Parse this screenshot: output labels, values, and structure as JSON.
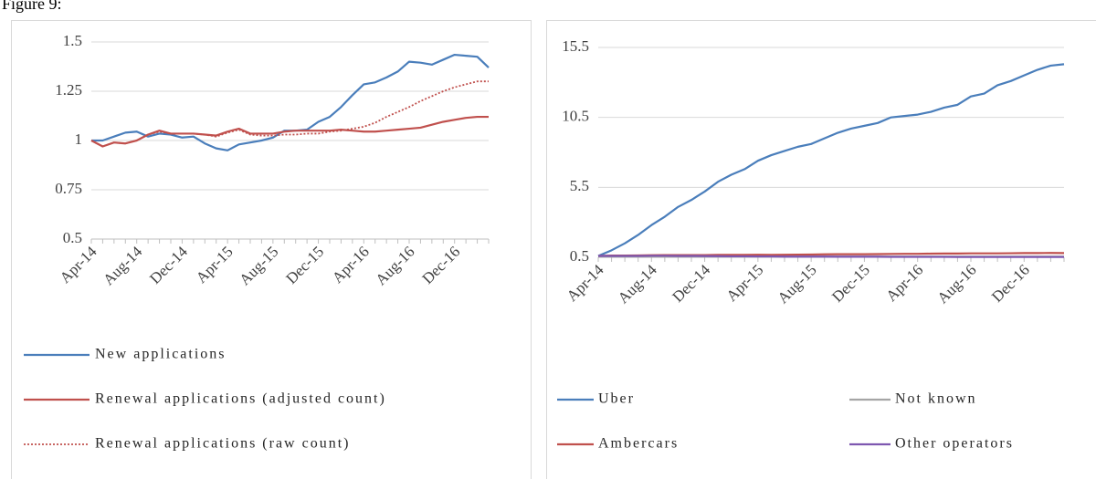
{
  "figure_label": "Figure 9:",
  "chart_data": [
    {
      "type": "line",
      "categories": [
        "Apr-14",
        null,
        null,
        null,
        "Aug-14",
        null,
        null,
        null,
        "Dec-14",
        null,
        null,
        null,
        "Apr-15",
        null,
        null,
        null,
        "Aug-15",
        null,
        null,
        null,
        "Dec-15",
        null,
        null,
        null,
        "Apr-16",
        null,
        null,
        null,
        "Aug-16",
        null,
        null,
        null,
        "Dec-16",
        null,
        null,
        null
      ],
      "ylim": [
        0.5,
        1.5
      ],
      "yticks": [
        0.5,
        0.75,
        1,
        1.25,
        1.5
      ],
      "grid": true,
      "legend": "bottom",
      "series": [
        {
          "name": "New applications",
          "color": "#4a7ebb",
          "values": [
            1.0,
            1.0,
            1.02,
            1.04,
            1.045,
            1.02,
            1.035,
            1.03,
            1.015,
            1.02,
            0.985,
            0.96,
            0.95,
            0.98,
            0.99,
            1.0,
            1.015,
            1.05,
            1.05,
            1.055,
            1.095,
            1.12,
            1.17,
            1.23,
            1.285,
            1.295,
            1.32,
            1.35,
            1.4,
            1.395,
            1.385,
            1.41,
            1.435,
            1.43,
            1.425,
            1.37
          ]
        },
        {
          "name": "Renewal applications (adjusted count)",
          "color": "#c0504d",
          "values": [
            1.0,
            0.97,
            0.99,
            0.985,
            1.0,
            1.03,
            1.05,
            1.035,
            1.035,
            1.035,
            1.03,
            1.025,
            1.045,
            1.06,
            1.035,
            1.035,
            1.035,
            1.045,
            1.05,
            1.05,
            1.05,
            1.05,
            1.055,
            1.05,
            1.045,
            1.045,
            1.05,
            1.055,
            1.06,
            1.065,
            1.08,
            1.095,
            1.105,
            1.115,
            1.12,
            1.12
          ]
        },
        {
          "name": "Renewal applications (raw count)",
          "color": "#c0504d",
          "dash": "dotted",
          "values": [
            1.0,
            0.97,
            0.99,
            0.985,
            1.0,
            1.03,
            1.045,
            1.035,
            1.035,
            1.035,
            1.03,
            1.02,
            1.04,
            1.055,
            1.03,
            1.025,
            1.025,
            1.03,
            1.03,
            1.035,
            1.035,
            1.045,
            1.05,
            1.06,
            1.07,
            1.09,
            1.12,
            1.145,
            1.17,
            1.2,
            1.225,
            1.25,
            1.27,
            1.285,
            1.3,
            1.3
          ]
        }
      ]
    },
    {
      "type": "line",
      "categories": [
        "Apr-14",
        null,
        null,
        null,
        "Aug-14",
        null,
        null,
        null,
        "Dec-14",
        null,
        null,
        null,
        "Apr-15",
        null,
        null,
        null,
        "Aug-15",
        null,
        null,
        null,
        "Dec-15",
        null,
        null,
        null,
        "Apr-16",
        null,
        null,
        null,
        "Aug-16",
        null,
        null,
        null,
        "Dec-16",
        null,
        null,
        null
      ],
      "ylim": [
        0.5,
        15.5
      ],
      "yticks": [
        0.5,
        5.5,
        10.5,
        15.5
      ],
      "grid": true,
      "legend": "bottom",
      "series": [
        {
          "name": "Uber",
          "color": "#4a7ebb",
          "values": [
            0.6,
            1.0,
            1.5,
            2.1,
            2.8,
            3.4,
            4.1,
            4.6,
            5.2,
            5.9,
            6.4,
            6.8,
            7.4,
            7.8,
            8.1,
            8.4,
            8.6,
            9.0,
            9.4,
            9.7,
            9.9,
            10.1,
            10.5,
            10.6,
            10.7,
            10.9,
            11.2,
            11.4,
            12.0,
            12.2,
            12.8,
            13.1,
            13.5,
            13.9,
            14.2,
            14.3
          ]
        },
        {
          "name": "Not known",
          "color": "#a5a5a5",
          "values": [
            0.55,
            0.55,
            0.55,
            0.55,
            0.55,
            0.55,
            0.55,
            0.55,
            0.55,
            0.55,
            0.55,
            0.55,
            0.55,
            0.55,
            0.55,
            0.55,
            0.55,
            0.55,
            0.55,
            0.55,
            0.55,
            0.55,
            0.55,
            0.55,
            0.55,
            0.55,
            0.55,
            0.55,
            0.55,
            0.55,
            0.55,
            0.55,
            0.55,
            0.55,
            0.55,
            0.55
          ]
        },
        {
          "name": "Ambercars",
          "color": "#c0504d",
          "values": [
            0.6,
            0.62,
            0.62,
            0.63,
            0.65,
            0.66,
            0.66,
            0.66,
            0.66,
            0.67,
            0.67,
            0.67,
            0.68,
            0.67,
            0.68,
            0.69,
            0.7,
            0.71,
            0.72,
            0.72,
            0.72,
            0.73,
            0.74,
            0.75,
            0.75,
            0.76,
            0.77,
            0.77,
            0.78,
            0.78,
            0.78,
            0.79,
            0.8,
            0.8,
            0.81,
            0.8
          ]
        },
        {
          "name": "Other operators",
          "color": "#7e57b0",
          "values": [
            0.6,
            0.6,
            0.6,
            0.6,
            0.61,
            0.61,
            0.6,
            0.6,
            0.59,
            0.58,
            0.57,
            0.57,
            0.56,
            0.56,
            0.55,
            0.55,
            0.55,
            0.55,
            0.54,
            0.54,
            0.54,
            0.54,
            0.53,
            0.53,
            0.53,
            0.53,
            0.53,
            0.52,
            0.52,
            0.52,
            0.52,
            0.52,
            0.52,
            0.52,
            0.52,
            0.52
          ]
        }
      ]
    }
  ]
}
